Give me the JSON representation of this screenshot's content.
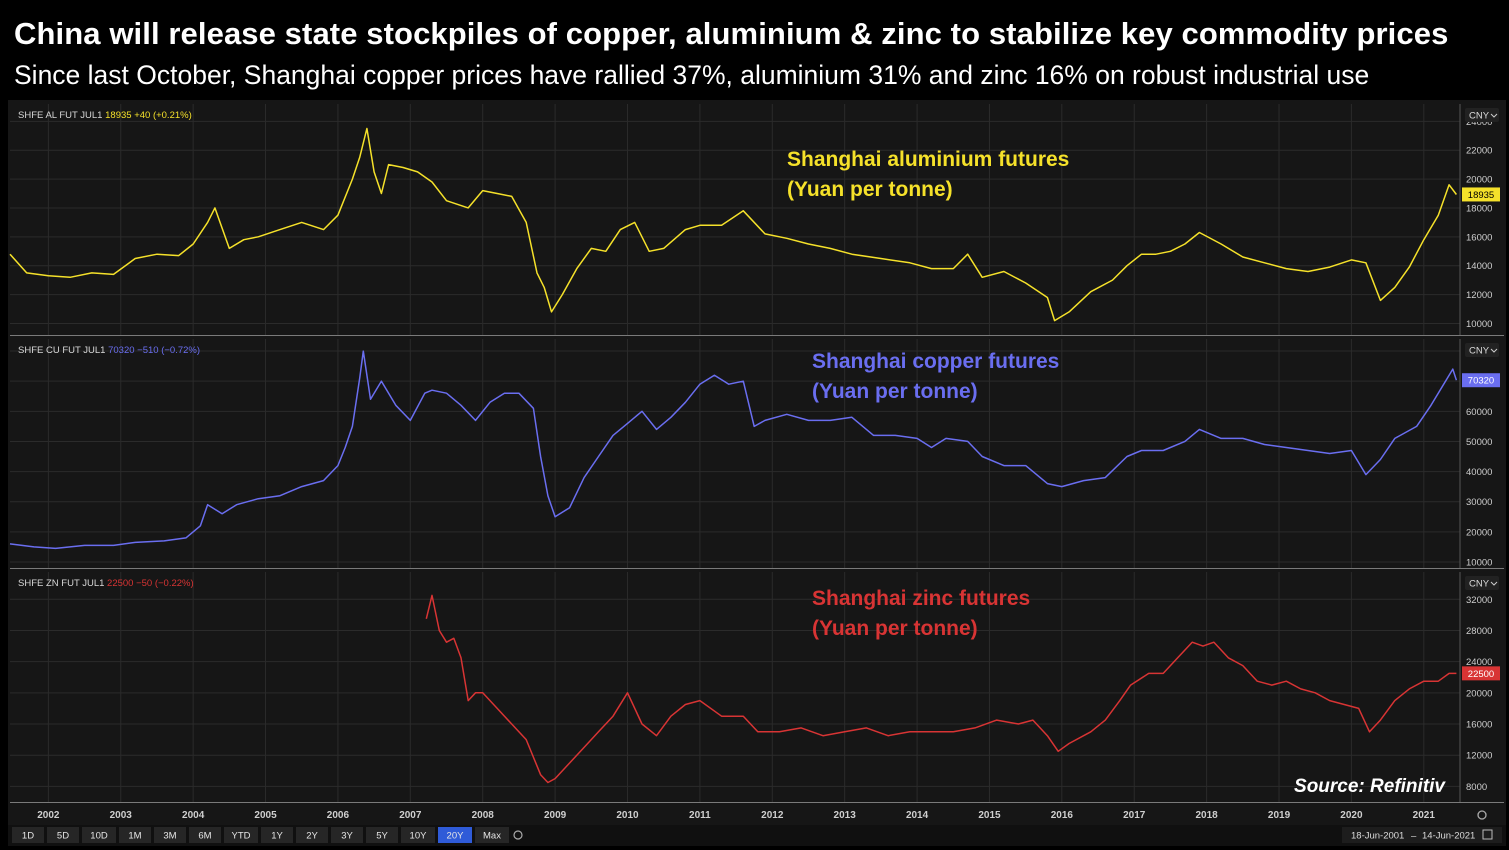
{
  "header": {
    "title": "China will release state stockpiles of copper, aluminium & zinc to stabilize key commodity prices",
    "subtitle": "Since last October, Shanghai copper prices have rallied 37%, aluminium 31% and zinc 16% on robust industrial use"
  },
  "source": "Source: Refinitiv",
  "colors": {
    "aluminium": "#f5e12a",
    "copper": "#6a6ef0",
    "zinc": "#d83434",
    "background": "#161616"
  },
  "toolbar": {
    "ranges": [
      "1D",
      "5D",
      "10D",
      "1M",
      "3M",
      "6M",
      "YTD",
      "1Y",
      "2Y",
      "3Y",
      "5Y",
      "10Y",
      "20Y",
      "Max"
    ],
    "active": "20Y",
    "date_from": "18-Jun-2001",
    "date_sep": "–",
    "date_to": "14-Jun-2021"
  },
  "chart_data": [
    {
      "type": "line",
      "key": "aluminium",
      "info": {
        "ticker": "SHFE AL FUT JUL1",
        "last": "18935",
        "change": "+40 (+0.21%)"
      },
      "annotation": [
        "Shanghai aluminium futures",
        "(Yuan per tonne)"
      ],
      "currency": "CNY",
      "last_label": "18935",
      "yticks": [
        10000,
        12000,
        14000,
        16000,
        18000,
        20000,
        22000,
        24000
      ],
      "ylim": [
        9200,
        25200
      ],
      "series": [
        {
          "x": [
            2001.47,
            2001.7,
            2002.0,
            2002.3,
            2002.6,
            2002.9,
            2003.2,
            2003.5,
            2003.8,
            2004.0,
            2004.2,
            2004.3,
            2004.5,
            2004.7,
            2004.9,
            2005.2,
            2005.5,
            2005.8,
            2006.0,
            2006.2,
            2006.3,
            2006.4,
            2006.5,
            2006.6,
            2006.7,
            2006.9,
            2007.1,
            2007.3,
            2007.5,
            2007.8,
            2008.0,
            2008.2,
            2008.4,
            2008.6,
            2008.75,
            2008.85,
            2008.95,
            2009.1,
            2009.3,
            2009.5,
            2009.7,
            2009.9,
            2010.1,
            2010.3,
            2010.5,
            2010.8,
            2011.0,
            2011.3,
            2011.6,
            2011.9,
            2012.2,
            2012.5,
            2012.8,
            2013.1,
            2013.5,
            2013.9,
            2014.2,
            2014.5,
            2014.7,
            2014.9,
            2015.2,
            2015.5,
            2015.8,
            2015.9,
            2016.1,
            2016.4,
            2016.7,
            2016.9,
            2017.1,
            2017.3,
            2017.5,
            2017.7,
            2017.9,
            2018.2,
            2018.5,
            2018.8,
            2019.1,
            2019.4,
            2019.7,
            2020.0,
            2020.2,
            2020.4,
            2020.6,
            2020.8,
            2021.0,
            2021.2,
            2021.35,
            2021.45
          ],
          "y": [
            14800,
            13500,
            13300,
            13200,
            13500,
            13400,
            14500,
            14800,
            14700,
            15500,
            17000,
            18000,
            15200,
            15800,
            16000,
            16500,
            17000,
            16500,
            17500,
            20000,
            21500,
            23500,
            20500,
            19000,
            21000,
            20800,
            20500,
            19800,
            18500,
            18000,
            19200,
            19000,
            18800,
            17000,
            13500,
            12500,
            10800,
            12000,
            13800,
            15200,
            15000,
            16500,
            17000,
            15000,
            15200,
            16500,
            16800,
            16800,
            17800,
            16200,
            15900,
            15500,
            15200,
            14800,
            14500,
            14200,
            13800,
            13800,
            14800,
            13200,
            13600,
            12800,
            11800,
            10200,
            10800,
            12200,
            13000,
            14000,
            14800,
            14800,
            15000,
            15500,
            16300,
            15500,
            14600,
            14200,
            13800,
            13600,
            13900,
            14400,
            14200,
            11600,
            12500,
            13900,
            15800,
            17500,
            19600,
            18935
          ]
        }
      ]
    },
    {
      "type": "line",
      "key": "copper",
      "info": {
        "ticker": "SHFE CU FUT JUL1",
        "last": "70320",
        "change": "−510 (−0.72%)"
      },
      "annotation": [
        "Shanghai copper futures",
        "(Yuan per tonne)"
      ],
      "currency": "CNY",
      "last_label": "70320",
      "yticks": [
        10000,
        20000,
        30000,
        40000,
        50000,
        60000,
        70000,
        80000
      ],
      "ylim": [
        8000,
        84000
      ],
      "series": [
        {
          "x": [
            2001.47,
            2001.8,
            2002.1,
            2002.5,
            2002.9,
            2003.2,
            2003.6,
            2003.9,
            2004.1,
            2004.2,
            2004.4,
            2004.6,
            2004.9,
            2005.2,
            2005.5,
            2005.8,
            2006.0,
            2006.1,
            2006.2,
            2006.3,
            2006.35,
            2006.45,
            2006.6,
            2006.8,
            2007.0,
            2007.2,
            2007.3,
            2007.5,
            2007.7,
            2007.9,
            2008.1,
            2008.3,
            2008.5,
            2008.7,
            2008.8,
            2008.9,
            2009.0,
            2009.2,
            2009.4,
            2009.6,
            2009.8,
            2010.0,
            2010.2,
            2010.4,
            2010.6,
            2010.8,
            2011.0,
            2011.2,
            2011.4,
            2011.6,
            2011.75,
            2011.9,
            2012.2,
            2012.5,
            2012.8,
            2013.1,
            2013.4,
            2013.7,
            2014.0,
            2014.2,
            2014.4,
            2014.7,
            2014.9,
            2015.2,
            2015.5,
            2015.8,
            2016.0,
            2016.3,
            2016.6,
            2016.9,
            2017.1,
            2017.4,
            2017.7,
            2017.9,
            2018.2,
            2018.5,
            2018.8,
            2019.1,
            2019.4,
            2019.7,
            2020.0,
            2020.2,
            2020.4,
            2020.6,
            2020.9,
            2021.1,
            2021.3,
            2021.4,
            2021.45
          ],
          "y": [
            16000,
            15000,
            14500,
            15500,
            15500,
            16500,
            17000,
            18000,
            22000,
            29000,
            26000,
            29000,
            31000,
            32000,
            35000,
            37000,
            42000,
            48000,
            55000,
            71000,
            80000,
            64000,
            70000,
            62000,
            57000,
            66000,
            67000,
            66000,
            62000,
            57000,
            63000,
            66000,
            66000,
            61000,
            45000,
            32000,
            25000,
            28000,
            38000,
            45000,
            52000,
            56000,
            60000,
            54000,
            58000,
            63000,
            69000,
            72000,
            69000,
            70000,
            55000,
            57000,
            59000,
            57000,
            57000,
            58000,
            52000,
            52000,
            51000,
            48000,
            51000,
            50000,
            45000,
            42000,
            42000,
            36000,
            35000,
            37000,
            38000,
            45000,
            47000,
            47000,
            50000,
            54000,
            51000,
            51000,
            49000,
            48000,
            47000,
            46000,
            47000,
            39000,
            44000,
            51000,
            55000,
            62000,
            70000,
            74000,
            70320
          ]
        }
      ]
    },
    {
      "type": "line",
      "key": "zinc",
      "info": {
        "ticker": "SHFE ZN FUT JUL1",
        "last": "22500",
        "change": "−50 (−0.22%)"
      },
      "annotation": [
        "Shanghai zinc futures",
        "(Yuan per tonne)"
      ],
      "currency": "CNY",
      "last_label": "22500",
      "yticks": [
        8000,
        12000,
        16000,
        20000,
        24000,
        28000,
        32000
      ],
      "ylim": [
        6000,
        35500
      ],
      "series": [
        {
          "x": [
            2007.22,
            2007.3,
            2007.4,
            2007.5,
            2007.6,
            2007.7,
            2007.8,
            2007.9,
            2008.0,
            2008.2,
            2008.4,
            2008.6,
            2008.8,
            2008.9,
            2009.0,
            2009.2,
            2009.4,
            2009.6,
            2009.8,
            2010.0,
            2010.2,
            2010.4,
            2010.6,
            2010.8,
            2011.0,
            2011.3,
            2011.6,
            2011.8,
            2012.1,
            2012.4,
            2012.7,
            2013.0,
            2013.3,
            2013.6,
            2013.9,
            2014.2,
            2014.5,
            2014.8,
            2015.1,
            2015.4,
            2015.6,
            2015.8,
            2015.95,
            2016.1,
            2016.4,
            2016.6,
            2016.8,
            2016.95,
            2017.2,
            2017.4,
            2017.6,
            2017.8,
            2017.95,
            2018.1,
            2018.3,
            2018.5,
            2018.7,
            2018.9,
            2019.1,
            2019.3,
            2019.5,
            2019.7,
            2019.9,
            2020.1,
            2020.25,
            2020.4,
            2020.6,
            2020.8,
            2021.0,
            2021.2,
            2021.35,
            2021.45
          ],
          "y": [
            29500,
            32500,
            28000,
            26500,
            27000,
            24500,
            19000,
            20000,
            20000,
            18000,
            16000,
            14000,
            9500,
            8500,
            9000,
            11000,
            13000,
            15000,
            17000,
            20000,
            16000,
            14500,
            17000,
            18500,
            19000,
            17000,
            17000,
            15000,
            15000,
            15500,
            14500,
            15000,
            15500,
            14500,
            15000,
            15000,
            15000,
            15500,
            16500,
            16000,
            16500,
            14500,
            12500,
            13500,
            15000,
            16500,
            19000,
            21000,
            22500,
            22500,
            24500,
            26500,
            26000,
            26500,
            24500,
            23500,
            21500,
            21000,
            21500,
            20500,
            20000,
            19000,
            18500,
            18000,
            15000,
            16500,
            19000,
            20500,
            21500,
            21500,
            22500,
            22500
          ]
        }
      ]
    }
  ],
  "x_axis": {
    "labels": [
      "2002",
      "2003",
      "2004",
      "2005",
      "2006",
      "2007",
      "2008",
      "2009",
      "2010",
      "2011",
      "2012",
      "2013",
      "2014",
      "2015",
      "2016",
      "2017",
      "2018",
      "2019",
      "2020",
      "2021"
    ],
    "values": [
      2002,
      2003,
      2004,
      2005,
      2006,
      2007,
      2008,
      2009,
      2010,
      2011,
      2012,
      2013,
      2014,
      2015,
      2016,
      2017,
      2018,
      2019,
      2020,
      2021
    ],
    "range": [
      2001.47,
      2021.5
    ]
  }
}
